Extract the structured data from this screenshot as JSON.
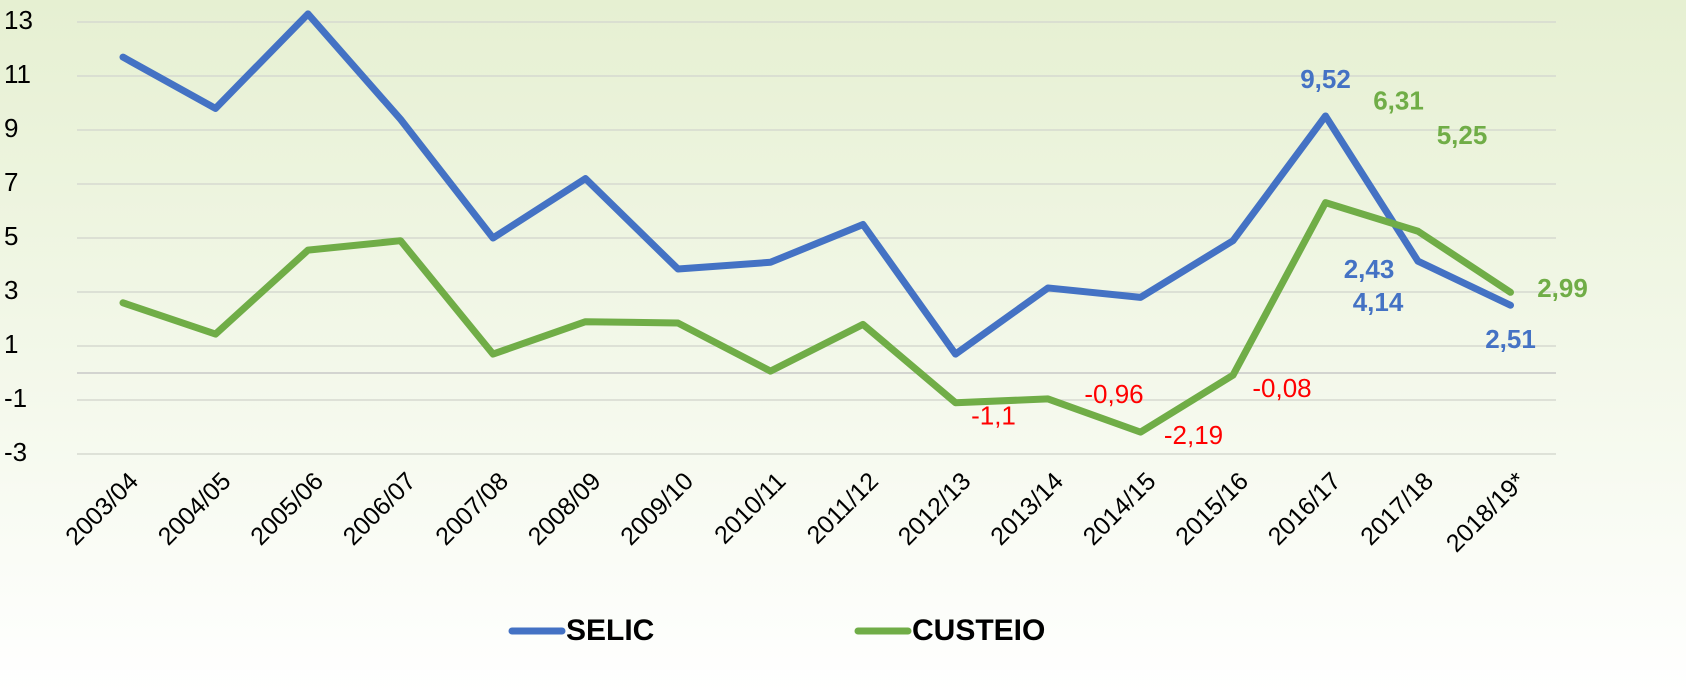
{
  "chart_data": {
    "type": "line",
    "categories": [
      "2003/04",
      "2004/05",
      "2005/06",
      "2006/07",
      "2007/08",
      "2008/09",
      "2009/10",
      "2010/11",
      "2011/12",
      "2012/13",
      "2013/14",
      "2014/15",
      "2015/16",
      "2016/17",
      "2017/18",
      "2018/19*"
    ],
    "series": [
      {
        "name": "SELIC",
        "color": "#4472c4",
        "values": [
          11.7,
          9.8,
          13.3,
          9.4,
          5.0,
          7.2,
          3.85,
          4.1,
          5.5,
          0.7,
          3.15,
          2.8,
          4.9,
          9.52,
          4.14,
          2.51
        ],
        "value_labels": [
          null,
          null,
          null,
          null,
          null,
          null,
          null,
          null,
          null,
          null,
          null,
          null,
          null,
          "9,52",
          "4,14",
          "2,51"
        ]
      },
      {
        "name": "CUSTEIO",
        "color": "#70ad47",
        "values": [
          2.6,
          1.44,
          4.55,
          4.9,
          0.7,
          1.9,
          1.85,
          0.07,
          1.8,
          -1.1,
          -0.96,
          -2.19,
          -0.08,
          6.31,
          5.25,
          2.99
        ],
        "value_labels": [
          null,
          null,
          null,
          null,
          null,
          null,
          null,
          null,
          null,
          "-1,1",
          "-0,96",
          "-2,19",
          "-0,08",
          "6,31",
          "5,25",
          "2,99"
        ]
      }
    ],
    "annotations": [
      "2,43"
    ],
    "negative_label_color": "#ff0000",
    "ylim": [
      -3,
      13.5
    ],
    "yticks": [
      -3,
      -1,
      1,
      3,
      5,
      7,
      9,
      11,
      13
    ],
    "grid": true,
    "legend": "bottom"
  }
}
